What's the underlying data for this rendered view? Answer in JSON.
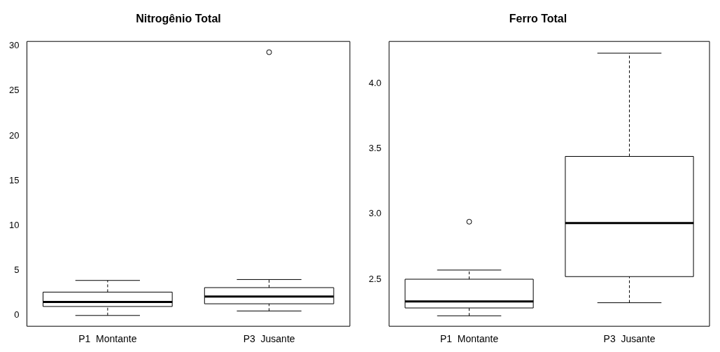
{
  "chart_data": [
    {
      "type": "box",
      "title": "Nitrogênio Total",
      "categories": [
        "P1  Montante",
        "P3  Jusante"
      ],
      "boxes": [
        {
          "low": 0,
          "q1": 1.0,
          "median": 1.5,
          "q3": 2.6,
          "high": 3.9
        },
        {
          "low": 0.5,
          "q1": 1.3,
          "median": 2.1,
          "q3": 3.1,
          "high": 4.0,
          "outliers": [
            29.3
          ]
        }
      ],
      "ylim": [
        -1.2,
        30.5
      ],
      "yticks": [
        0,
        5,
        10,
        15,
        20,
        25,
        30
      ]
    },
    {
      "type": "box",
      "title": "Ferro Total",
      "categories": [
        "P1  Montante",
        "P3  Jusante"
      ],
      "boxes": [
        {
          "low": 2.22,
          "q1": 2.28,
          "median": 2.33,
          "q3": 2.5,
          "high": 2.57,
          "outliers": [
            2.94
          ]
        },
        {
          "low": 2.32,
          "q1": 2.52,
          "median": 2.93,
          "q3": 3.44,
          "high": 4.23
        }
      ],
      "ylim": [
        2.14,
        4.32
      ],
      "yticks": [
        2.5,
        {
          "value": 3,
          "label": "3.0"
        },
        3.5,
        {
          "value": 4,
          "label": "4.0"
        }
      ]
    }
  ]
}
